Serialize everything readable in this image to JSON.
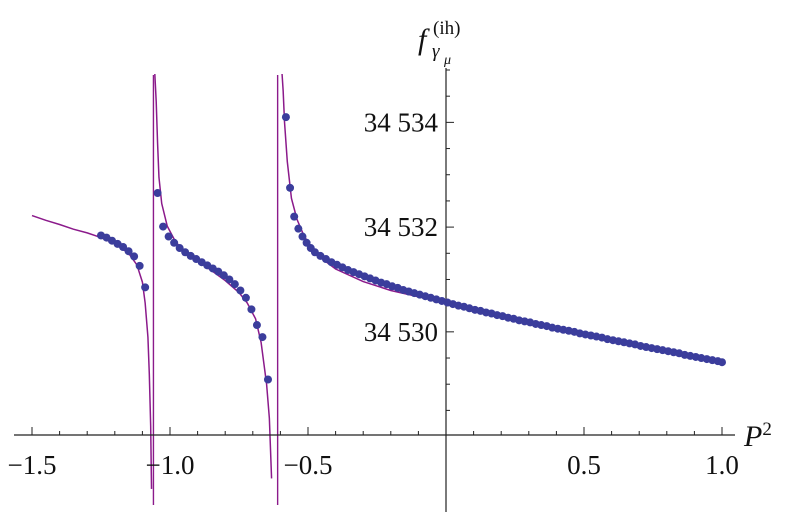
{
  "chart_data": {
    "type": "scatter",
    "xlabel": {
      "base": "P",
      "sup": "2"
    },
    "ylabel": {
      "base": "f",
      "sub": "γ",
      "subsub": "μ",
      "sup": "(ih)"
    },
    "xlim": [
      -1.5,
      1.0
    ],
    "ylim": [
      34528.03,
      34535.0
    ],
    "y_axis_position_x": 0,
    "x_ticks": [
      {
        "value": -1.5,
        "label": "−1.5"
      },
      {
        "value": -1.0,
        "label": "−1.0"
      },
      {
        "value": -0.5,
        "label": "−0.5"
      },
      {
        "value": 0.5,
        "label": "0.5"
      },
      {
        "value": 1.0,
        "label": "1.0"
      }
    ],
    "y_ticks": [
      {
        "value": 34530,
        "label": "34 530"
      },
      {
        "value": 34532,
        "label": "34 532"
      },
      {
        "value": 34534,
        "label": "34 534"
      }
    ],
    "colors": {
      "curve": "#8b1a8b",
      "points": "#3b3d9c",
      "axis": "#222222"
    },
    "poles": [
      -1.06,
      -0.61
    ],
    "series": [
      {
        "kind": "line",
        "branches": [
          [
            [
              -1.5,
              34532.22
            ],
            [
              -1.45,
              34532.13
            ],
            [
              -1.4,
              34532.05
            ],
            [
              -1.35,
              34531.96
            ],
            [
              -1.3,
              34531.89
            ],
            [
              -1.25,
              34531.8
            ],
            [
              -1.2,
              34531.68
            ],
            [
              -1.15,
              34531.5
            ],
            [
              -1.12,
              34531.28
            ],
            [
              -1.1,
              34530.95
            ],
            [
              -1.09,
              34530.55
            ],
            [
              -1.08,
              34529.9
            ],
            [
              -1.075,
              34529.2
            ],
            [
              -1.07,
              34528.2
            ],
            [
              -1.067,
              34527.0
            ]
          ],
          [
            [
              -1.055,
              34535.5
            ],
            [
              -1.05,
              34534.4
            ],
            [
              -1.045,
              34533.6
            ],
            [
              -1.04,
              34532.95
            ],
            [
              -1.03,
              34532.45
            ],
            [
              -1.01,
              34532.02
            ],
            [
              -0.98,
              34531.72
            ],
            [
              -0.95,
              34531.55
            ],
            [
              -0.9,
              34531.36
            ],
            [
              -0.85,
              34531.17
            ],
            [
              -0.8,
              34530.98
            ],
            [
              -0.75,
              34530.75
            ],
            [
              -0.72,
              34530.55
            ],
            [
              -0.69,
              34530.25
            ],
            [
              -0.67,
              34529.8
            ],
            [
              -0.65,
              34529.0
            ],
            [
              -0.64,
              34528.35
            ],
            [
              -0.632,
              34527.2
            ]
          ],
          [
            [
              -0.594,
              34535.5
            ],
            [
              -0.59,
              34534.6
            ],
            [
              -0.585,
              34534.0
            ],
            [
              -0.575,
              34533.25
            ],
            [
              -0.56,
              34532.55
            ],
            [
              -0.54,
              34532.15
            ],
            [
              -0.52,
              34531.9
            ],
            [
              -0.5,
              34531.7
            ],
            [
              -0.45,
              34531.4
            ],
            [
              -0.4,
              34531.2
            ],
            [
              -0.3,
              34530.96
            ],
            [
              -0.2,
              34530.79
            ],
            [
              -0.1,
              34530.67
            ],
            [
              0.0,
              34530.58
            ],
            [
              0.1,
              34530.46
            ],
            [
              0.2,
              34530.34
            ],
            [
              0.3,
              34530.22
            ],
            [
              0.4,
              34530.1
            ],
            [
              0.5,
              34529.98
            ],
            [
              0.6,
              34529.86
            ],
            [
              0.7,
              34529.74
            ],
            [
              0.8,
              34529.62
            ],
            [
              0.9,
              34529.5
            ],
            [
              1.0,
              34529.38
            ]
          ]
        ]
      },
      {
        "kind": "scatter",
        "points": [
          [
            -1.25,
            34531.84
          ],
          [
            -1.23,
            34531.8
          ],
          [
            -1.21,
            34531.74
          ],
          [
            -1.19,
            34531.68
          ],
          [
            -1.17,
            34531.62
          ],
          [
            -1.15,
            34531.54
          ],
          [
            -1.13,
            34531.44
          ],
          [
            -1.11,
            34531.26
          ],
          [
            -1.09,
            34530.85
          ],
          [
            -1.045,
            34532.65
          ],
          [
            -1.025,
            34532.01
          ],
          [
            -1.005,
            34531.82
          ],
          [
            -0.985,
            34531.7
          ],
          [
            -0.965,
            34531.6
          ],
          [
            -0.945,
            34531.52
          ],
          [
            -0.925,
            34531.45
          ],
          [
            -0.905,
            34531.39
          ],
          [
            -0.885,
            34531.33
          ],
          [
            -0.865,
            34531.27
          ],
          [
            -0.845,
            34531.21
          ],
          [
            -0.825,
            34531.15
          ],
          [
            -0.805,
            34531.08
          ],
          [
            -0.785,
            34531.0
          ],
          [
            -0.765,
            34530.91
          ],
          [
            -0.745,
            34530.79
          ],
          [
            -0.725,
            34530.65
          ],
          [
            -0.705,
            34530.43
          ],
          [
            -0.685,
            34530.13
          ],
          [
            -0.665,
            34529.9
          ],
          [
            -0.645,
            34529.09
          ],
          [
            -0.58,
            34534.1
          ],
          [
            -0.565,
            34532.75
          ],
          [
            -0.55,
            34532.2
          ],
          [
            -0.535,
            34531.97
          ],
          [
            -0.52,
            34531.82
          ],
          [
            -0.505,
            34531.7
          ],
          [
            -0.49,
            34531.6
          ],
          [
            -0.475,
            34531.52
          ],
          [
            -0.455,
            34531.45
          ],
          [
            -0.435,
            34531.39
          ],
          [
            -0.415,
            34531.33
          ],
          [
            -0.395,
            34531.28
          ],
          [
            -0.375,
            34531.23
          ],
          [
            -0.355,
            34531.18
          ],
          [
            -0.335,
            34531.14
          ],
          [
            -0.315,
            34531.1
          ],
          [
            -0.295,
            34531.06
          ],
          [
            -0.275,
            34531.02
          ],
          [
            -0.255,
            34530.98
          ],
          [
            -0.235,
            34530.94
          ],
          [
            -0.215,
            34530.91
          ],
          [
            -0.195,
            34530.87
          ],
          [
            -0.175,
            34530.84
          ],
          [
            -0.155,
            34530.8
          ],
          [
            -0.135,
            34530.77
          ],
          [
            -0.115,
            34530.74
          ],
          [
            -0.095,
            34530.71
          ],
          [
            -0.075,
            34530.68
          ],
          [
            -0.055,
            34530.65
          ],
          [
            -0.035,
            34530.62
          ],
          [
            -0.015,
            34530.59
          ],
          [
            0.005,
            34530.56
          ],
          [
            0.025,
            34530.53
          ],
          [
            0.045,
            34530.5
          ],
          [
            0.065,
            34530.48
          ],
          [
            0.085,
            34530.45
          ],
          [
            0.105,
            34530.42
          ],
          [
            0.125,
            34530.4
          ],
          [
            0.145,
            34530.37
          ],
          [
            0.165,
            34530.35
          ],
          [
            0.185,
            34530.32
          ],
          [
            0.205,
            34530.3
          ],
          [
            0.225,
            34530.27
          ],
          [
            0.245,
            34530.25
          ],
          [
            0.265,
            34530.22
          ],
          [
            0.285,
            34530.2
          ],
          [
            0.305,
            34530.18
          ],
          [
            0.325,
            34530.15
          ],
          [
            0.345,
            34530.13
          ],
          [
            0.365,
            34530.11
          ],
          [
            0.385,
            34530.08
          ],
          [
            0.405,
            34530.06
          ],
          [
            0.425,
            34530.04
          ],
          [
            0.445,
            34530.02
          ],
          [
            0.465,
            34530.0
          ],
          [
            0.485,
            34529.97
          ],
          [
            0.505,
            34529.95
          ],
          [
            0.525,
            34529.93
          ],
          [
            0.545,
            34529.91
          ],
          [
            0.565,
            34529.89
          ],
          [
            0.585,
            34529.86
          ],
          [
            0.605,
            34529.84
          ],
          [
            0.625,
            34529.82
          ],
          [
            0.645,
            34529.8
          ],
          [
            0.665,
            34529.78
          ],
          [
            0.685,
            34529.76
          ],
          [
            0.705,
            34529.73
          ],
          [
            0.725,
            34529.71
          ],
          [
            0.745,
            34529.69
          ],
          [
            0.765,
            34529.67
          ],
          [
            0.785,
            34529.65
          ],
          [
            0.805,
            34529.63
          ],
          [
            0.825,
            34529.61
          ],
          [
            0.845,
            34529.59
          ],
          [
            0.865,
            34529.56
          ],
          [
            0.885,
            34529.54
          ],
          [
            0.905,
            34529.52
          ],
          [
            0.925,
            34529.5
          ],
          [
            0.945,
            34529.48
          ],
          [
            0.965,
            34529.46
          ],
          [
            0.985,
            34529.44
          ],
          [
            1.0,
            34529.42
          ]
        ]
      }
    ]
  }
}
